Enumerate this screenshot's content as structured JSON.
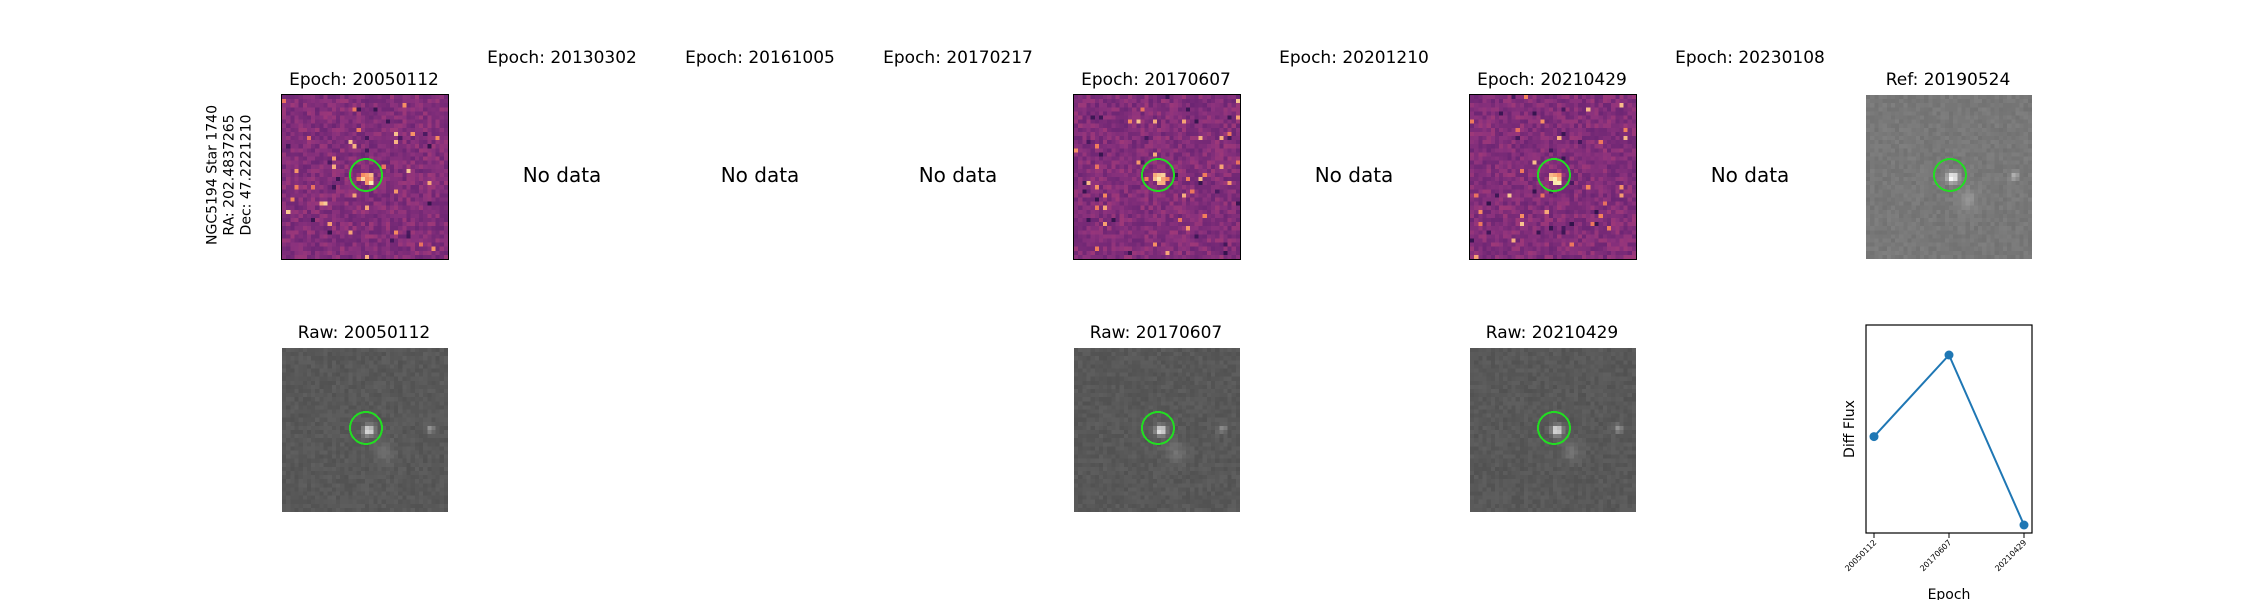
{
  "object_label": {
    "line1": "NGC5194 Star 1740",
    "line2": "RA: 202.4837265",
    "line3": "Dec: 47.2221210"
  },
  "top_row": [
    {
      "title": "Epoch: 20050112",
      "status": "image"
    },
    {
      "title": "Epoch: 20130302",
      "status": "No data"
    },
    {
      "title": "Epoch: 20161005",
      "status": "No data"
    },
    {
      "title": "Epoch: 20170217",
      "status": "No data"
    },
    {
      "title": "Epoch: 20170607",
      "status": "image"
    },
    {
      "title": "Epoch: 20201210",
      "status": "No data"
    },
    {
      "title": "Epoch: 20210429",
      "status": "image"
    },
    {
      "title": "Epoch: 20230108",
      "status": "No data"
    },
    {
      "title": "Ref: 20190524",
      "status": "image"
    }
  ],
  "bottom_row": [
    {
      "title": "Raw: 20050112"
    },
    {
      "title": "Raw: 20170607"
    },
    {
      "title": "Raw: 20210429"
    }
  ],
  "colors": {
    "diff_base": "#8a3a80",
    "raw_base": "#5a5a5a",
    "ref_base": "#7c7c7c",
    "aperture": "#22dd22",
    "series": "#1f77b4"
  },
  "chart_data": {
    "type": "line",
    "x": [
      "20050112",
      "20170607",
      "20210429"
    ],
    "y": [
      0.52,
      1.0,
      0.0
    ],
    "xlabel": "Epoch",
    "ylabel": "Diff Flux",
    "title": "",
    "yticks_shown": false
  }
}
